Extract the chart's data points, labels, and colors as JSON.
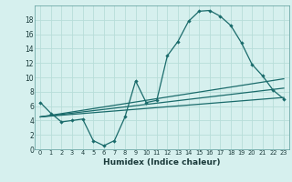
{
  "xlabel": "Humidex (Indice chaleur)",
  "bg_color": "#d6f0ee",
  "grid_color": "#b8ddd9",
  "line_color": "#1a6b6b",
  "xlim": [
    -0.5,
    23.5
  ],
  "ylim": [
    0,
    20
  ],
  "xticks": [
    0,
    1,
    2,
    3,
    4,
    5,
    6,
    7,
    8,
    9,
    10,
    11,
    12,
    13,
    14,
    15,
    16,
    17,
    18,
    19,
    20,
    21,
    22,
    23
  ],
  "yticks": [
    0,
    2,
    4,
    6,
    8,
    10,
    12,
    14,
    16,
    18
  ],
  "line1_x": [
    0,
    1,
    2,
    3,
    4,
    5,
    6,
    7,
    8,
    9,
    10,
    11,
    12,
    13,
    14,
    15,
    16,
    17,
    18,
    19,
    20,
    21,
    22,
    23
  ],
  "line1_y": [
    6.5,
    5.0,
    3.8,
    4.0,
    4.2,
    1.2,
    0.5,
    1.2,
    4.5,
    9.5,
    6.5,
    6.8,
    13.0,
    15.0,
    17.8,
    19.2,
    19.3,
    18.5,
    17.2,
    14.8,
    11.8,
    10.2,
    8.2,
    7.0
  ],
  "line2_x": [
    0,
    23
  ],
  "line2_y": [
    4.5,
    7.2
  ],
  "line3_x": [
    0,
    23
  ],
  "line3_y": [
    4.5,
    8.5
  ],
  "line4_x": [
    0,
    23
  ],
  "line4_y": [
    4.5,
    9.8
  ]
}
